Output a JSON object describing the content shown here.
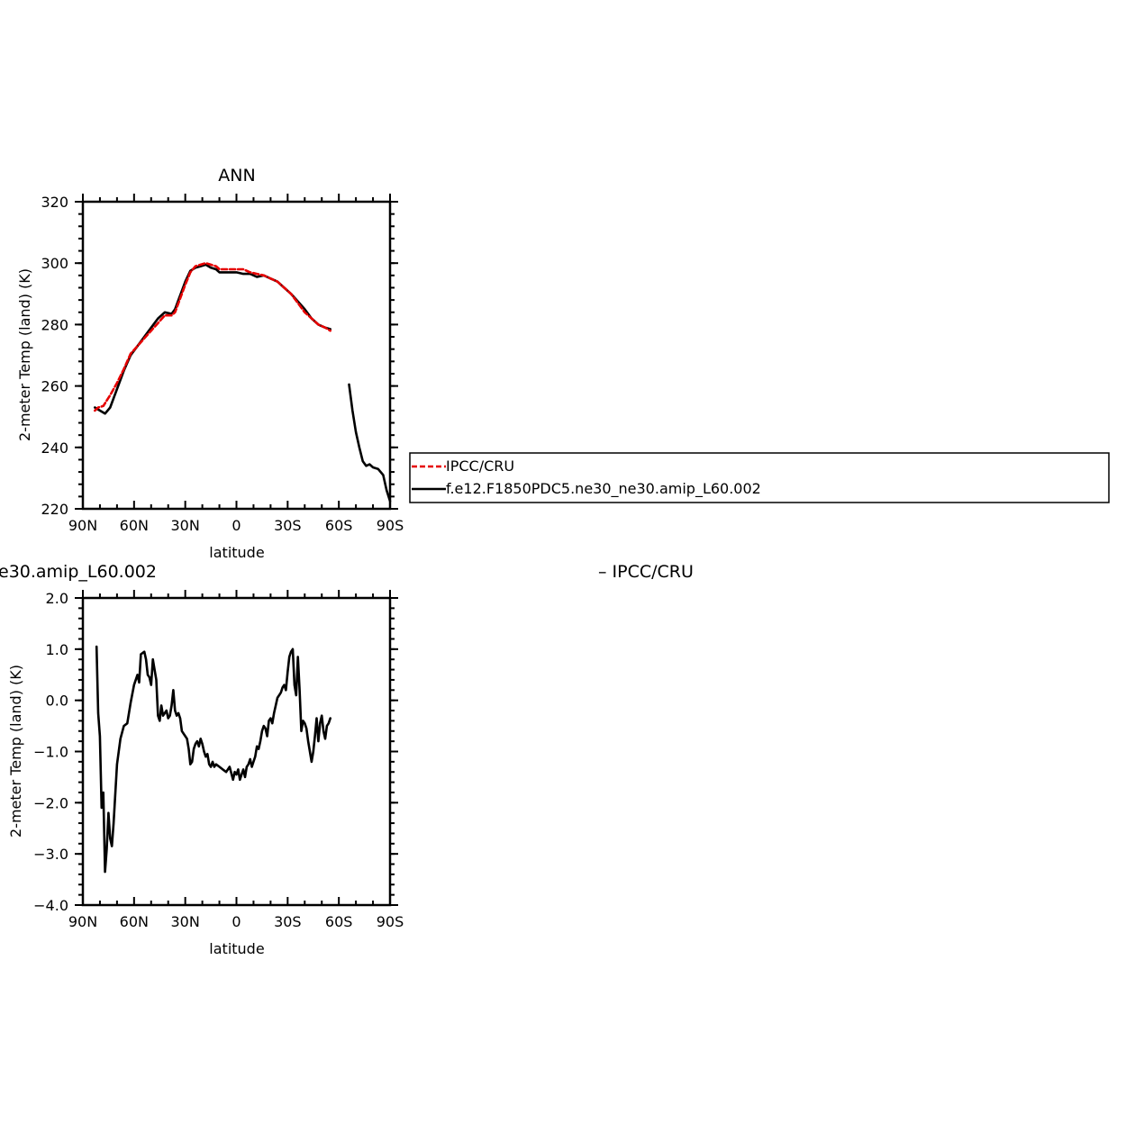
{
  "chart_data": [
    {
      "type": "line",
      "title": "ANN",
      "xlabel": "latitude",
      "ylabel": "2-meter Temp (land) (K)",
      "xlim": [
        90,
        -90
      ],
      "ylim": [
        220,
        320
      ],
      "x_ticks": [
        90,
        60,
        30,
        0,
        -30,
        -60,
        -90
      ],
      "x_tick_labels": [
        "90N",
        "60N",
        "30N",
        "0",
        "30S",
        "60S",
        "90S"
      ],
      "y_ticks": [
        220,
        240,
        260,
        280,
        300,
        320
      ],
      "y_tick_labels": [
        "220",
        "240",
        "260",
        "280",
        "300",
        "320"
      ],
      "legend_position": "right",
      "series": [
        {
          "name": "IPCC/CRU",
          "color": "#e60000",
          "dash": "dashed",
          "segments": [
            {
              "x": [
                83,
                81,
                78,
                74,
                70,
                66,
                62,
                58,
                54,
                50,
                46,
                42,
                38,
                36,
                34,
                32,
                30,
                27,
                24,
                21,
                18,
                15,
                12,
                10,
                6,
                2,
                0,
                -4,
                -8,
                -12,
                -16,
                -20,
                -24,
                -28,
                -32,
                -36,
                -40,
                -44,
                -48,
                -52,
                -55
              ],
              "y": [
                252,
                253,
                253.5,
                257,
                261,
                265.5,
                270.5,
                273,
                275.5,
                278,
                280.5,
                283,
                283,
                284,
                287,
                290,
                293,
                297,
                299,
                299.5,
                300,
                299.5,
                299,
                298,
                298,
                298,
                298,
                298,
                297,
                296.5,
                296,
                295,
                294,
                292,
                290,
                287,
                284,
                282,
                280,
                279,
                278
              ]
            }
          ]
        },
        {
          "name": "f.e12.F1850PDC5.ne30_ne30.amip_L60.002",
          "color": "#000000",
          "dash": "solid",
          "segments": [
            {
              "x": [
                83,
                80,
                77,
                74,
                70,
                66,
                62,
                58,
                54,
                50,
                46,
                42,
                38,
                36,
                34,
                32,
                30,
                27,
                24,
                21,
                18,
                15,
                12,
                10,
                6,
                2,
                0,
                -4,
                -8,
                -12,
                -16,
                -20,
                -24,
                -28,
                -32,
                -36,
                -40,
                -44,
                -48,
                -52,
                -55
              ],
              "y": [
                253,
                252,
                251,
                253,
                259,
                265,
                270,
                273,
                276,
                279,
                282,
                284,
                283.5,
                285,
                288,
                291,
                294,
                297.5,
                298.5,
                299,
                299.5,
                298.5,
                298,
                297,
                297,
                297,
                297,
                296.5,
                296.5,
                295.5,
                296,
                295,
                294,
                292,
                290,
                287.5,
                285,
                282,
                280,
                279,
                278.5
              ]
            },
            {
              "x": [
                -66,
                -68,
                -70,
                -72,
                -74,
                -76,
                -78,
                -80,
                -83,
                -86,
                -88,
                -90
              ],
              "y": [
                260.5,
                252,
                245,
                240,
                235.5,
                234,
                234.5,
                233.5,
                233,
                231,
                226,
                222.5
              ]
            }
          ]
        }
      ]
    },
    {
      "type": "line",
      "title": "e30.amip_L60.002",
      "title_right": "– IPCC/CRU",
      "xlabel": "latitude",
      "ylabel": "2-meter Temp (land) (K)",
      "xlim": [
        90,
        -90
      ],
      "ylim": [
        -4.0,
        2.0
      ],
      "x_ticks": [
        90,
        60,
        30,
        0,
        -30,
        -60,
        -90
      ],
      "x_tick_labels": [
        "90N",
        "60N",
        "30N",
        "0",
        "30S",
        "60S",
        "90S"
      ],
      "y_ticks": [
        -4.0,
        -3.0,
        -2.0,
        -1.0,
        0.0,
        1.0,
        2.0
      ],
      "y_tick_labels": [
        "−4.0",
        "−3.0",
        "−2.0",
        "−1.0",
        "0.0",
        "1.0",
        "2.0"
      ],
      "series": [
        {
          "color": "#000000",
          "dash": "solid",
          "segments": [
            {
              "x": [
                82,
                81,
                80,
                79,
                78,
                77,
                76,
                75,
                74,
                73,
                72,
                70,
                69,
                68,
                66,
                64,
                62,
                60,
                58,
                57,
                56,
                54,
                53,
                52,
                51,
                50,
                49,
                48,
                47,
                46,
                45,
                44,
                43,
                42,
                41,
                40,
                39,
                38,
                37,
                36,
                35,
                34,
                33,
                32,
                30,
                29,
                28,
                27,
                26,
                25,
                24,
                23,
                22,
                21,
                20,
                19,
                18,
                17,
                16,
                15,
                14,
                13,
                12,
                10,
                8,
                6,
                4,
                2,
                1,
                0,
                -1,
                -2,
                -3,
                -4,
                -5,
                -6,
                -7,
                -8,
                -9,
                -10,
                -11,
                -12,
                -13,
                -14,
                -15,
                -16,
                -17,
                -18,
                -19,
                -20,
                -21,
                -22,
                -23,
                -24,
                -25,
                -26,
                -27,
                -28,
                -29,
                -30,
                -31,
                -32,
                -33,
                -34,
                -35,
                -36,
                -37,
                -38,
                -39,
                -40,
                -41,
                -42,
                -43,
                -44,
                -45,
                -46,
                -47,
                -48,
                -49,
                -50,
                -51,
                -52,
                -53,
                -54,
                -55
              ],
              "y": [
                1.05,
                -0.25,
                -0.7,
                -2.1,
                -1.8,
                -3.35,
                -2.9,
                -2.2,
                -2.7,
                -2.85,
                -2.4,
                -1.25,
                -1.0,
                -0.75,
                -0.5,
                -0.45,
                -0.05,
                0.3,
                0.5,
                0.35,
                0.9,
                0.95,
                0.8,
                0.5,
                0.45,
                0.3,
                0.8,
                0.6,
                0.4,
                -0.3,
                -0.4,
                -0.1,
                -0.3,
                -0.25,
                -0.2,
                -0.35,
                -0.3,
                -0.1,
                0.2,
                -0.2,
                -0.3,
                -0.25,
                -0.35,
                -0.6,
                -0.7,
                -0.75,
                -0.95,
                -1.25,
                -1.2,
                -0.95,
                -0.85,
                -0.8,
                -0.9,
                -0.75,
                -0.85,
                -1.0,
                -1.1,
                -1.05,
                -1.25,
                -1.3,
                -1.2,
                -1.3,
                -1.25,
                -1.3,
                -1.35,
                -1.4,
                -1.3,
                -1.55,
                -1.4,
                -1.45,
                -1.35,
                -1.55,
                -1.45,
                -1.35,
                -1.5,
                -1.3,
                -1.25,
                -1.15,
                -1.3,
                -1.2,
                -1.1,
                -0.9,
                -0.95,
                -0.8,
                -0.6,
                -0.5,
                -0.55,
                -0.7,
                -0.4,
                -0.35,
                -0.45,
                -0.25,
                -0.1,
                0.05,
                0.1,
                0.15,
                0.25,
                0.3,
                0.2,
                0.55,
                0.85,
                0.95,
                1.0,
                0.3,
                0.1,
                0.85,
                0.2,
                -0.6,
                -0.4,
                -0.45,
                -0.55,
                -0.8,
                -1.0,
                -1.2,
                -1.0,
                -0.7,
                -0.35,
                -0.8,
                -0.45,
                -0.3,
                -0.6,
                -0.75,
                -0.5,
                -0.45,
                -0.35
              ]
            }
          ]
        }
      ]
    }
  ]
}
